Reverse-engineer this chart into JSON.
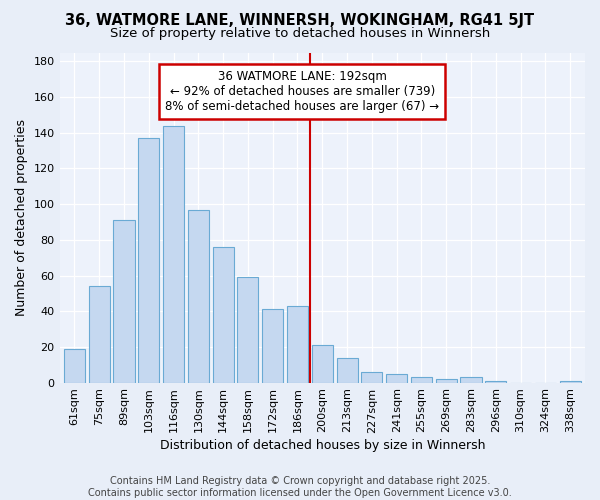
{
  "title": "36, WATMORE LANE, WINNERSH, WOKINGHAM, RG41 5JT",
  "subtitle": "Size of property relative to detached houses in Winnersh",
  "xlabel": "Distribution of detached houses by size in Winnersh",
  "ylabel": "Number of detached properties",
  "categories": [
    "61sqm",
    "75sqm",
    "89sqm",
    "103sqm",
    "116sqm",
    "130sqm",
    "144sqm",
    "158sqm",
    "172sqm",
    "186sqm",
    "200sqm",
    "213sqm",
    "227sqm",
    "241sqm",
    "255sqm",
    "269sqm",
    "283sqm",
    "296sqm",
    "310sqm",
    "324sqm",
    "338sqm"
  ],
  "values": [
    19,
    54,
    91,
    137,
    144,
    97,
    76,
    59,
    41,
    43,
    21,
    14,
    6,
    5,
    3,
    2,
    3,
    1,
    0,
    0,
    1
  ],
  "bar_color": "#c5d8f0",
  "bar_edge_color": "#6aaad4",
  "vline_color": "#cc0000",
  "annotation_line1": "36 WATMORE LANE: 192sqm",
  "annotation_line2": "← 92% of detached houses are smaller (739)",
  "annotation_line3": "8% of semi-detached houses are larger (67) →",
  "annotation_box_color": "#cc0000",
  "ylim": [
    0,
    185
  ],
  "yticks": [
    0,
    20,
    40,
    60,
    80,
    100,
    120,
    140,
    160,
    180
  ],
  "footer_text": "Contains HM Land Registry data © Crown copyright and database right 2025.\nContains public sector information licensed under the Open Government Licence v3.0.",
  "bg_color": "#e8eef8",
  "plot_bg_color": "#edf2fb",
  "title_fontsize": 10.5,
  "subtitle_fontsize": 9.5,
  "axis_label_fontsize": 9,
  "tick_fontsize": 8,
  "footer_fontsize": 7,
  "annotation_fontsize": 8.5
}
